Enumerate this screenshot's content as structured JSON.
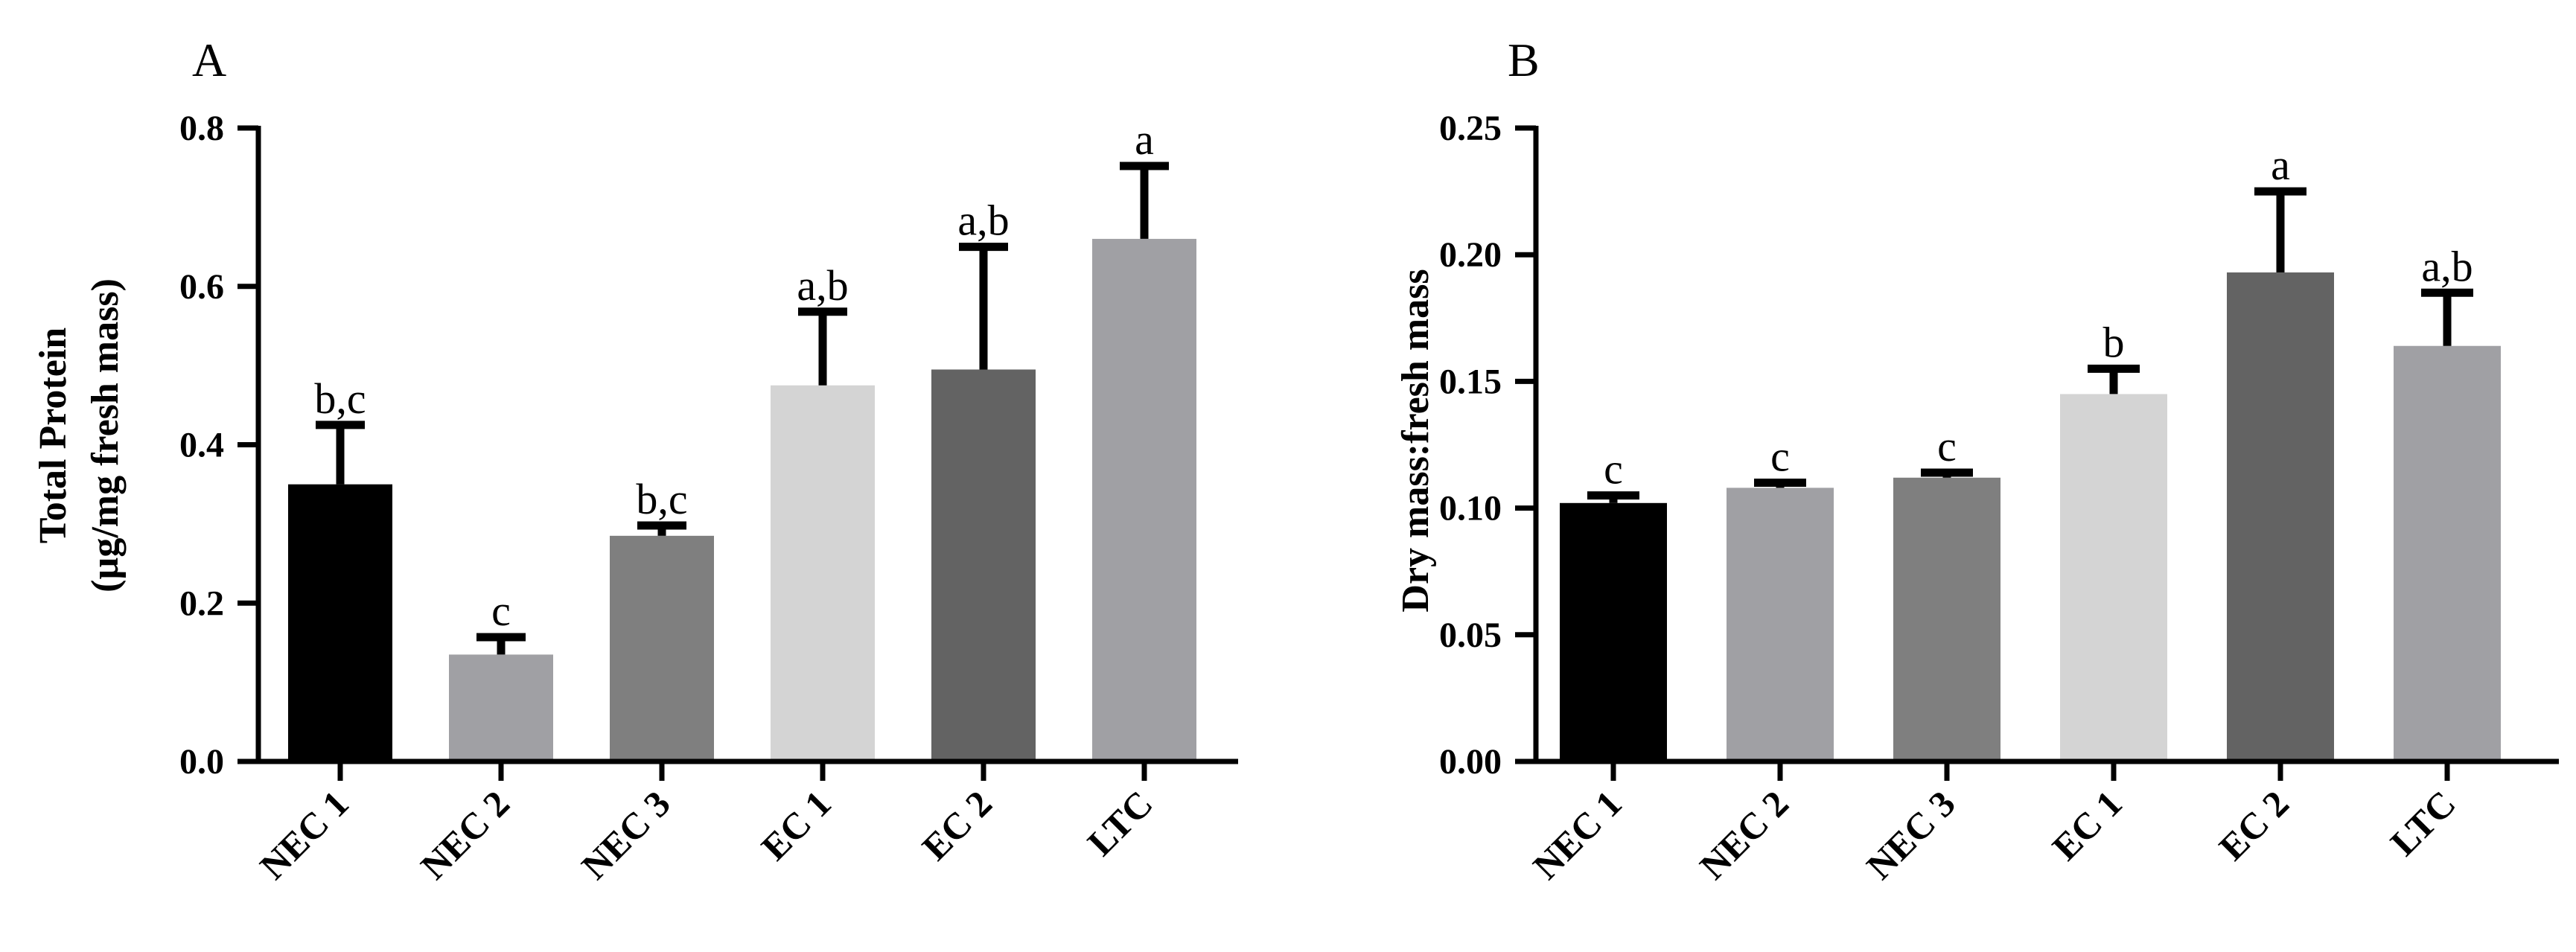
{
  "chart_data": [
    {
      "panel": "A",
      "type": "bar",
      "title": "",
      "xlabel": "",
      "ylabel": "Total Protein",
      "ylabel_line2": "(µg/mg fresh mass)",
      "ylim": [
        0,
        0.8
      ],
      "yticks": [
        0.0,
        0.2,
        0.4,
        0.6,
        0.8
      ],
      "ytick_labels": [
        "0.0",
        "0.2",
        "0.4",
        "0.6",
        "0.8"
      ],
      "categories": [
        "NEC 1",
        "NEC 2",
        "NEC 3",
        "EC 1",
        "EC 2",
        "LTC"
      ],
      "values": [
        0.35,
        0.135,
        0.285,
        0.475,
        0.495,
        0.66
      ],
      "errors": [
        0.075,
        0.022,
        0.013,
        0.093,
        0.155,
        0.092
      ],
      "significance": [
        "b,c",
        "c",
        "b,c",
        "a,b",
        "a,b",
        "a"
      ],
      "colors": [
        "#000000",
        "#a0a0a4",
        "#7f7f7f",
        "#d4d4d4",
        "#636363",
        "#a0a0a4"
      ]
    },
    {
      "panel": "B",
      "type": "bar",
      "title": "",
      "xlabel": "",
      "ylabel": "Dry mass:fresh mass",
      "ylim": [
        0,
        0.25
      ],
      "yticks": [
        0.0,
        0.05,
        0.1,
        0.15,
        0.2,
        0.25
      ],
      "ytick_labels": [
        "0.00",
        "0.05",
        "0.10",
        "0.15",
        "0.20",
        "0.25"
      ],
      "categories": [
        "NEC 1",
        "NEC 2",
        "NEC 3",
        "EC 1",
        "EC 2",
        "LTC"
      ],
      "values": [
        0.102,
        0.108,
        0.112,
        0.145,
        0.193,
        0.164
      ],
      "errors": [
        0.003,
        0.002,
        0.002,
        0.01,
        0.032,
        0.021
      ],
      "significance": [
        "c",
        "c",
        "c",
        "b",
        "a",
        "a,b"
      ],
      "colors": [
        "#000000",
        "#a0a0a4",
        "#7f7f7f",
        "#d4d4d4",
        "#636363",
        "#a0a0a4"
      ]
    }
  ]
}
